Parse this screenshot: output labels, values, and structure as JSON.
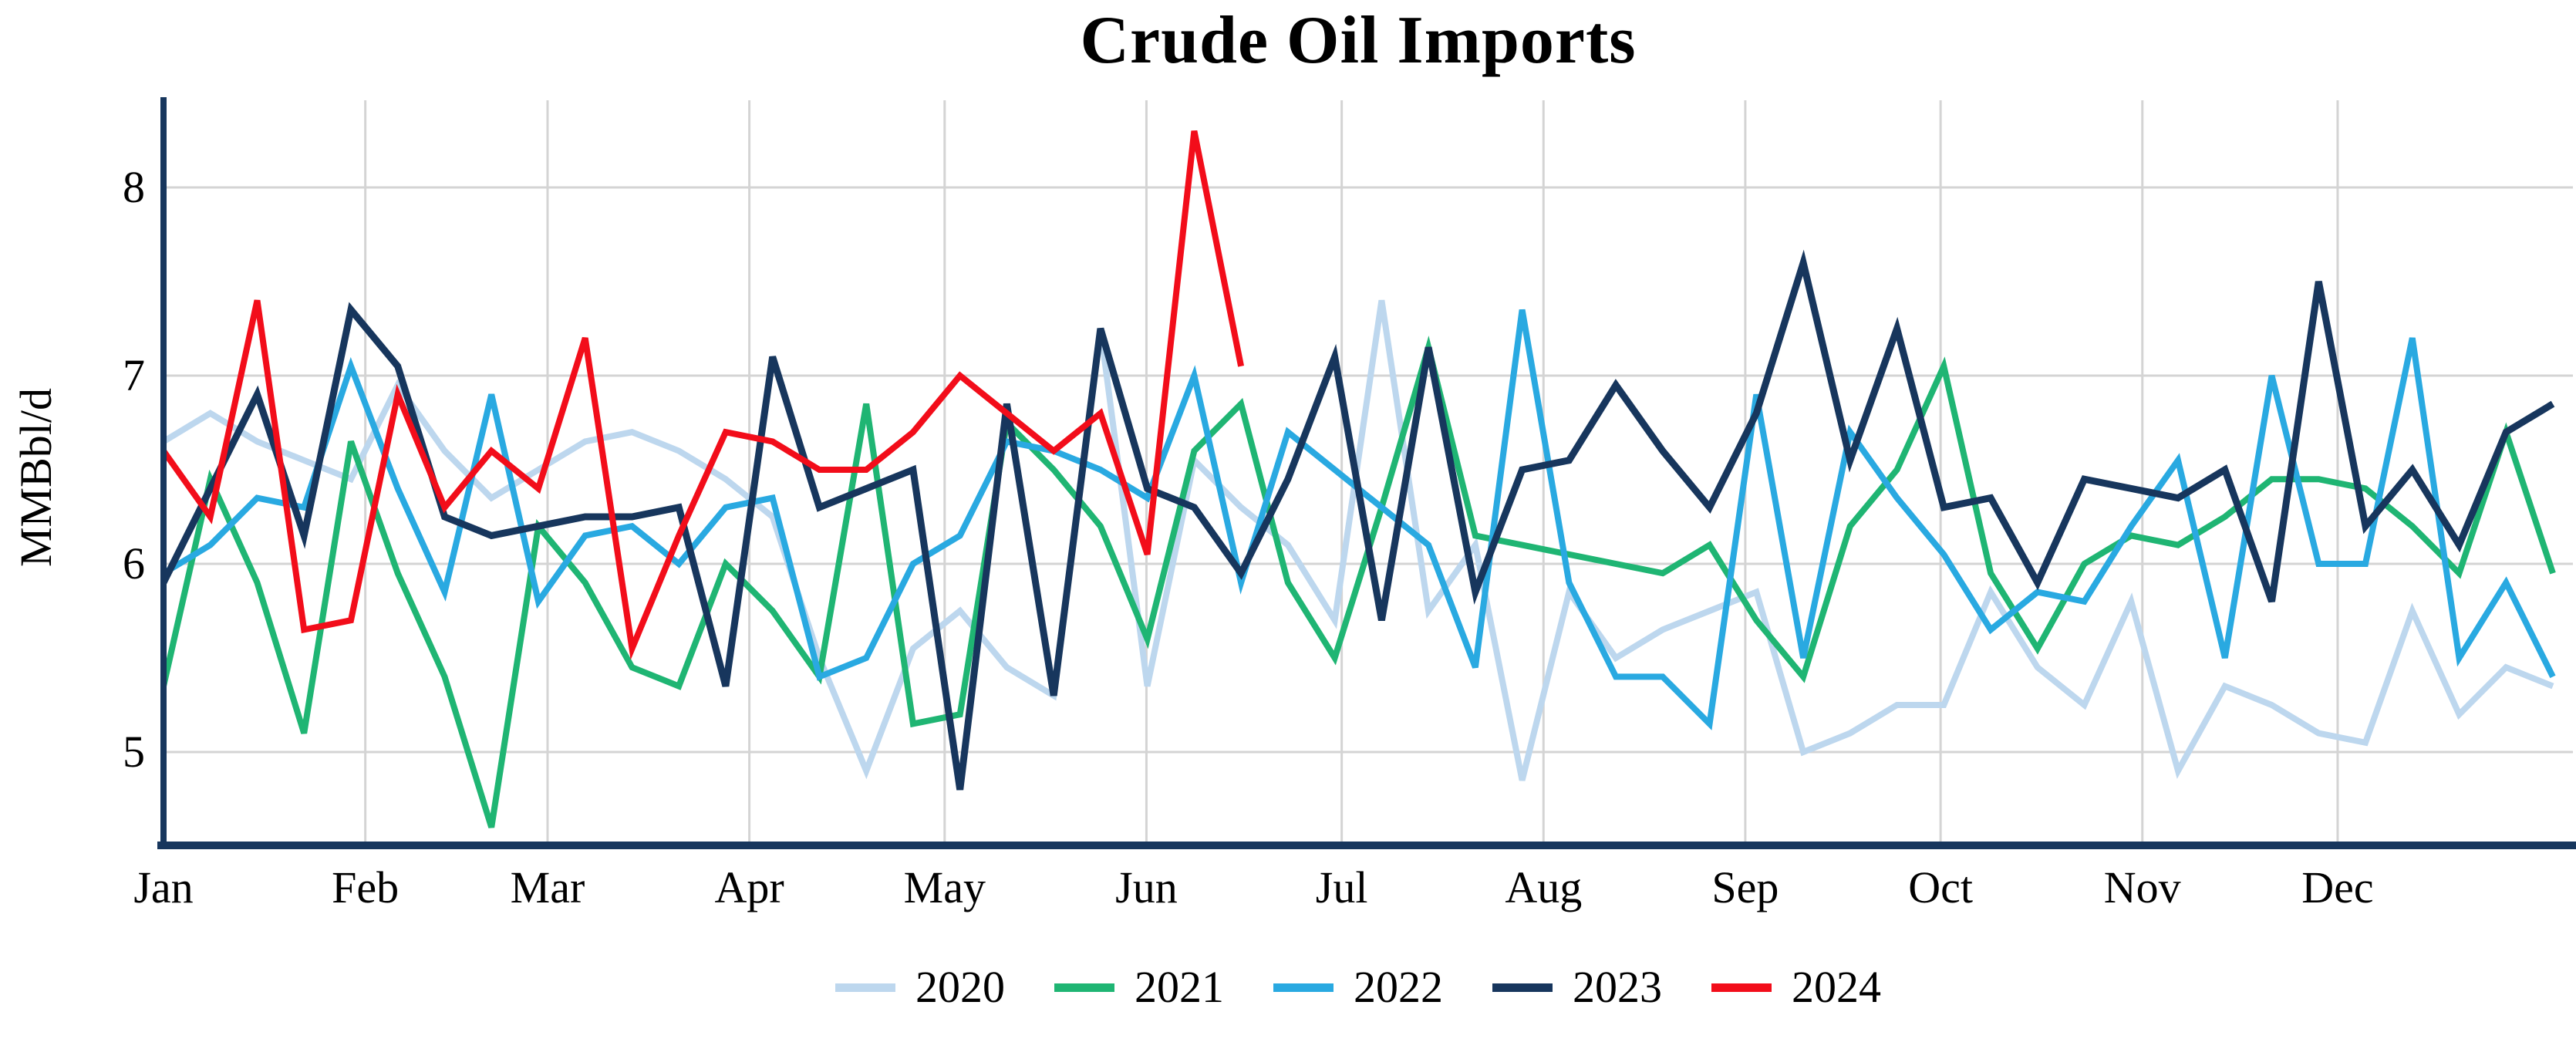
{
  "title": "Crude Oil Imports",
  "y_axis": {
    "label": "MMBbl/d",
    "ticks": [
      "8",
      "7",
      "6",
      "5"
    ],
    "tick_values": [
      8,
      7,
      6,
      5
    ]
  },
  "x_axis": {
    "months": [
      {
        "label": "Jan",
        "day": 0
      },
      {
        "label": "Feb",
        "day": 31
      },
      {
        "label": "Mar",
        "day": 59
      },
      {
        "label": "Apr",
        "day": 90
      },
      {
        "label": "May",
        "day": 120
      },
      {
        "label": "Jun",
        "day": 151
      },
      {
        "label": "Jul",
        "day": 181
      },
      {
        "label": "Aug",
        "day": 212
      },
      {
        "label": "Sep",
        "day": 243
      },
      {
        "label": "Oct",
        "day": 273
      },
      {
        "label": "Nov",
        "day": 304
      },
      {
        "label": "Dec",
        "day": 334
      }
    ]
  },
  "legend": {
    "items": [
      {
        "label": "2020",
        "color": "#BDD7EE"
      },
      {
        "label": "2021",
        "color": "#1FB573"
      },
      {
        "label": "2022",
        "color": "#29A9E1"
      },
      {
        "label": "2023",
        "color": "#17365D"
      },
      {
        "label": "2024",
        "color": "#F20D1A"
      }
    ]
  },
  "colors": {
    "axis": "#17365D",
    "gridline": "#D4D4D4",
    "background": "#FFFFFF",
    "text": "#000000"
  },
  "chart_data": {
    "type": "line",
    "title": "Crude Oil Imports",
    "xlabel": "",
    "ylabel": "MMBbl/d",
    "x_unit": "week of year (weekly data)",
    "ylim": [
      4.5,
      8.5
    ],
    "grid": "horizontal and vertical month gridlines",
    "legend_position": "bottom center",
    "series": [
      {
        "name": "2020",
        "color": "#BDD7EE",
        "values": [
          6.65,
          6.8,
          6.65,
          6.55,
          6.45,
          6.95,
          6.6,
          6.35,
          6.5,
          6.65,
          6.7,
          6.6,
          6.45,
          6.25,
          5.5,
          4.9,
          5.55,
          5.75,
          5.45,
          5.3,
          7.25,
          5.35,
          6.55,
          6.3,
          6.1,
          5.7,
          7.4,
          5.75,
          6.1,
          4.85,
          5.85,
          5.5,
          5.65,
          5.75,
          5.85,
          5.0,
          5.1,
          5.25,
          5.25,
          5.85,
          5.45,
          5.25,
          5.8,
          4.9,
          5.35,
          5.25,
          5.1,
          5.05,
          5.75,
          5.2,
          5.45,
          5.35
        ]
      },
      {
        "name": "2021",
        "color": "#1FB573",
        "values": [
          5.35,
          6.45,
          5.9,
          5.1,
          6.65,
          5.95,
          5.4,
          4.6,
          6.2,
          5.9,
          5.45,
          5.35,
          6.0,
          5.75,
          5.4,
          6.85,
          5.15,
          5.2,
          6.75,
          6.5,
          6.2,
          5.6,
          6.6,
          6.85,
          5.9,
          5.5,
          6.3,
          7.15,
          6.15,
          6.1,
          6.05,
          6.0,
          5.95,
          6.1,
          5.7,
          5.4,
          6.2,
          6.5,
          7.05,
          5.95,
          5.55,
          6.0,
          6.15,
          6.1,
          6.25,
          6.45,
          6.45,
          6.4,
          6.2,
          5.95,
          6.7,
          5.95
        ]
      },
      {
        "name": "2022",
        "color": "#29A9E1",
        "values": [
          5.95,
          6.1,
          6.35,
          6.3,
          7.05,
          6.4,
          5.85,
          6.9,
          5.8,
          6.15,
          6.2,
          6.0,
          6.3,
          6.35,
          5.4,
          5.5,
          6.0,
          6.15,
          6.65,
          6.6,
          6.5,
          6.35,
          7.0,
          5.9,
          6.7,
          6.5,
          6.3,
          6.1,
          5.45,
          7.35,
          5.9,
          5.4,
          5.4,
          5.15,
          6.9,
          5.5,
          6.7,
          6.35,
          6.05,
          5.65,
          5.85,
          5.8,
          6.2,
          6.55,
          5.5,
          7.0,
          6.0,
          6.0,
          7.2,
          5.5,
          5.9,
          5.4
        ]
      },
      {
        "name": "2023",
        "color": "#17365D",
        "values": [
          5.9,
          6.4,
          6.9,
          6.15,
          7.35,
          7.05,
          6.25,
          6.15,
          6.2,
          6.25,
          6.25,
          6.3,
          5.35,
          7.1,
          6.3,
          6.4,
          6.5,
          4.8,
          6.85,
          5.3,
          7.25,
          6.4,
          6.3,
          5.95,
          6.45,
          7.1,
          5.7,
          7.15,
          5.85,
          6.5,
          6.55,
          6.95,
          6.6,
          6.3,
          6.8,
          7.6,
          6.55,
          7.25,
          6.3,
          6.35,
          5.9,
          6.45,
          6.4,
          6.35,
          6.5,
          5.8,
          7.5,
          6.2,
          6.5,
          6.1,
          6.7,
          6.85
        ]
      },
      {
        "name": "2024",
        "color": "#F20D1A",
        "values": [
          6.6,
          6.25,
          7.4,
          5.65,
          5.7,
          6.9,
          6.3,
          6.6,
          6.4,
          7.2,
          5.55,
          6.15,
          6.7,
          6.65,
          6.5,
          6.5,
          6.7,
          7.0,
          6.8,
          6.6,
          6.8,
          6.05,
          8.3,
          7.05
        ]
      }
    ]
  }
}
